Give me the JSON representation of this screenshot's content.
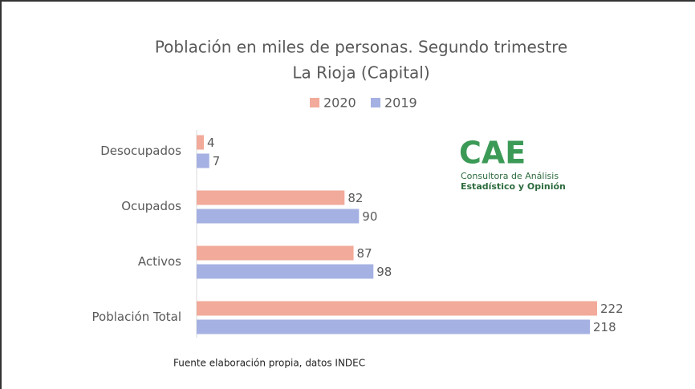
{
  "chart_data": {
    "type": "hbar",
    "title": "Población en miles de personas. Segundo trimestre",
    "subtitle": "La Rioja (Capital)",
    "categories": [
      "Desocupados",
      "Ocupados",
      "Activos",
      "Población Total"
    ],
    "series": [
      {
        "name": "2020",
        "color": "#f2aa9a",
        "values": [
          4,
          82,
          87,
          222
        ]
      },
      {
        "name": "2019",
        "color": "#a5b1e2",
        "values": [
          7,
          90,
          98,
          218
        ]
      }
    ],
    "source": "Fuente elaboración propia, datos INDEC",
    "logo": {
      "mark": "CAE",
      "line1": "Consultora de Análisis",
      "line2": "Estadístico y Opinión"
    }
  }
}
